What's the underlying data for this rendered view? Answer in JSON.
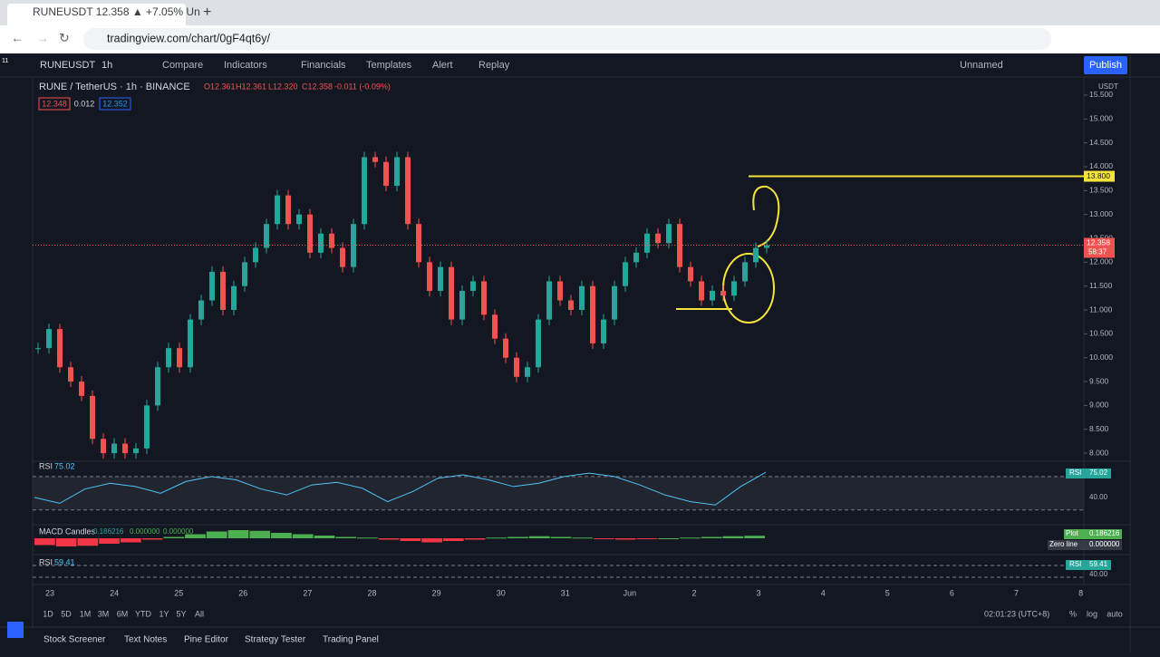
{
  "browser": {
    "tab_title": "RUNEUSDT 12.358 ▲ +7.05% Un",
    "url": "tradingview.com/chart/0gF4qt6y/"
  },
  "toolbar": {
    "badge": "11",
    "symbol": "RUNEUSDT",
    "interval": "1h",
    "items": [
      "Compare",
      "Indicators",
      "Financials",
      "Templates",
      "Alert",
      "Replay"
    ],
    "layout": "Unnamed",
    "publish": "Publish"
  },
  "legend": {
    "pair": "RUNE / TetherUS · 1h · BINANCE",
    "open": "O12.361",
    "high": "H12.361",
    "low": "L12.320",
    "close": "C12.358",
    "change": "-0.011 (-0.09%)",
    "bid": "12.348",
    "spread": "0.012",
    "ask": "12.352"
  },
  "chart": {
    "currency": "USDT",
    "ylim": [
      7.85,
      15.86
    ],
    "yticks": [
      {
        "value": 8,
        "label": "8.000"
      },
      {
        "value": 8.5,
        "label": "8.500"
      },
      {
        "value": 9,
        "label": "9.000"
      },
      {
        "value": 9.5,
        "label": "9.500"
      },
      {
        "value": 10,
        "label": "10.000"
      },
      {
        "value": 10.5,
        "label": "10.500"
      },
      {
        "value": 11,
        "label": "11.000"
      },
      {
        "value": 11.5,
        "label": "11.500"
      },
      {
        "value": 12,
        "label": "12.000"
      },
      {
        "value": 12.5,
        "label": "12.500"
      },
      {
        "value": 13,
        "label": "13.000"
      },
      {
        "value": 13.5,
        "label": "13.500"
      },
      {
        "value": 14,
        "label": "14.000"
      },
      {
        "value": 14.5,
        "label": "14.500"
      },
      {
        "value": 15,
        "label": "15.000"
      },
      {
        "value": 15.5,
        "label": "15.500"
      }
    ],
    "closes": [
      10.2,
      10.6,
      9.8,
      9.5,
      9.2,
      8.3,
      8.0,
      8.2,
      8.0,
      8.1,
      9.0,
      9.8,
      10.2,
      9.8,
      10.8,
      11.2,
      11.8,
      11.0,
      11.5,
      12.0,
      12.3,
      12.8,
      13.4,
      12.8,
      13.0,
      12.2,
      12.6,
      12.3,
      11.9,
      12.8,
      14.2,
      14.1,
      13.6,
      14.2,
      12.8,
      12.0,
      11.4,
      11.9,
      10.8,
      11.4,
      11.6,
      10.9,
      10.4,
      10.0,
      9.6,
      9.8,
      10.8,
      11.6,
      11.2,
      11.0,
      11.5,
      10.3,
      10.8,
      11.5,
      12.0,
      12.2,
      12.6,
      12.4,
      12.8,
      11.9,
      11.6,
      11.2,
      11.4,
      11.3,
      11.6,
      12.0,
      12.3,
      12.358
    ],
    "last_price": {
      "value": 12.358,
      "label": "12.358"
    },
    "countdown": "58:37",
    "alert_line": {
      "value": 13.8,
      "label": "13.800"
    },
    "dates": [
      "23",
      "24",
      "25",
      "26",
      "27",
      "28",
      "29",
      "30",
      "31",
      "Jun",
      "2",
      "3",
      "4",
      "5",
      "6",
      "7",
      "8"
    ]
  },
  "rsi": {
    "name": "RSI",
    "value": "75.02",
    "level_label": "40.00",
    "ylim": [
      20,
      85
    ],
    "values": [
      45,
      38,
      55,
      62,
      58,
      50,
      64,
      70,
      66,
      55,
      48,
      60,
      63,
      56,
      40,
      52,
      68,
      72,
      66,
      58,
      62,
      70,
      74,
      70,
      60,
      48,
      40,
      36,
      58,
      75.02
    ]
  },
  "macd": {
    "name": "MACD Candles",
    "v1": "0.186216",
    "v2": "0.000000",
    "v3": "0.000000",
    "plot_label": "Plot",
    "plot_value": "0.186216",
    "zero_label": "Zero line",
    "zero_value": "0.000000",
    "ylim": [
      -0.8,
      0.8
    ],
    "values": [
      -0.5,
      -0.6,
      -0.55,
      -0.4,
      -0.3,
      -0.1,
      0.1,
      0.3,
      0.5,
      0.6,
      0.55,
      0.4,
      0.3,
      0.2,
      0.1,
      0.05,
      -0.1,
      -0.2,
      -0.3,
      -0.2,
      -0.1,
      0.05,
      0.1,
      0.15,
      0.1,
      0.05,
      -0.05,
      -0.1,
      -0.05,
      0.0,
      0.05,
      0.1,
      0.15,
      0.186216
    ]
  },
  "rsi2": {
    "name": "RSI",
    "value": "59.41",
    "level_label": "40.00"
  },
  "timeframes": [
    "1D",
    "5D",
    "1M",
    "3M",
    "6M",
    "YTD",
    "1Y",
    "5Y",
    "All"
  ],
  "clock": "02:01:23 (UTC+8)",
  "scale_opts": [
    "%",
    "log",
    "auto"
  ],
  "bottom_tabs": [
    "Stock Screener",
    "Text Notes",
    "Pine Editor",
    "Strategy Tester",
    "Trading Panel"
  ]
}
